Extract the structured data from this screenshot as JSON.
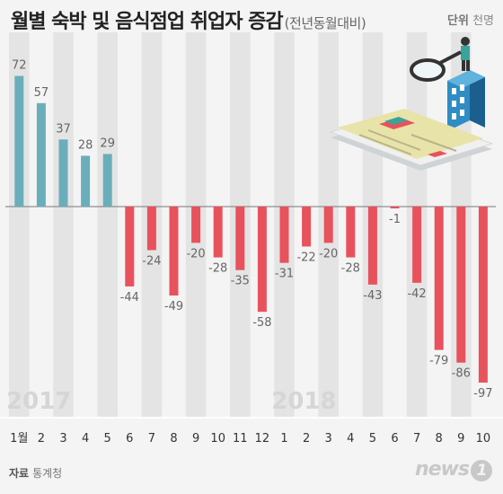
{
  "header": {
    "title": "월별 숙박 및 음식점업 취업자 증감",
    "subtitle": "(전년동월대비)",
    "unit_label": "단위",
    "unit_value": "천명"
  },
  "source": {
    "label": "자료",
    "value": "통계청"
  },
  "logo": {
    "text": "news",
    "mark": "1"
  },
  "colors": {
    "positive": "#6aaebb",
    "negative": "#e8525c",
    "stripe": "#e4e4e4",
    "baseline": "#777777"
  },
  "chart_data": {
    "type": "bar",
    "title": "월별 숙박 및 음식점업 취업자 증감",
    "ylabel": "",
    "xlabel": "",
    "ylim": [
      -100,
      75
    ],
    "years": [
      {
        "label": "2017",
        "start_index": 0
      },
      {
        "label": "2018",
        "start_index": 12
      }
    ],
    "categories": [
      "1월",
      "2",
      "3",
      "4",
      "5",
      "6",
      "7",
      "8",
      "9",
      "10",
      "11",
      "12",
      "1",
      "2",
      "3",
      "4",
      "5",
      "6",
      "7",
      "8",
      "9",
      "10"
    ],
    "values": [
      72,
      57,
      37,
      28,
      29,
      -44,
      -24,
      -49,
      -20,
      -28,
      -35,
      -58,
      -31,
      -22,
      -20,
      -28,
      -43,
      -1,
      -42,
      -79,
      -86,
      -97
    ],
    "value_labels": [
      "72",
      "57",
      "37",
      "28",
      "29",
      "-44",
      "-24",
      "-49",
      "-20",
      "-28",
      "-35",
      "-58",
      "-31",
      "-22",
      "-20",
      "-28",
      "-43",
      "-1",
      "-42",
      "-79",
      "-86",
      "-97"
    ]
  }
}
